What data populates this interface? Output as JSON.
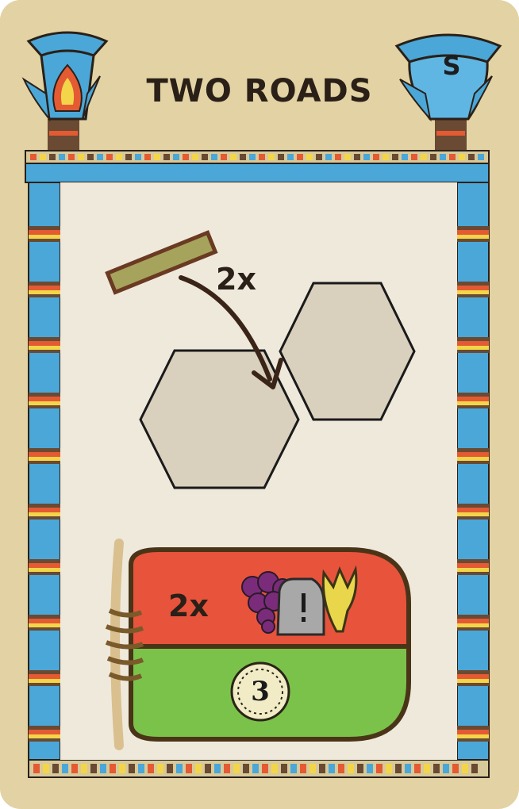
{
  "card": {
    "title": "TWO ROADS",
    "letter": "S",
    "road_multiplier": "2x",
    "reward_multiplier": "2x",
    "coin_value": "3",
    "icons": [
      "road-tile-icon",
      "arrow-icon",
      "hex-tile-icon",
      "grapes-icon",
      "event-stone-icon",
      "grain-icon",
      "coin-icon",
      "sack-icon"
    ],
    "colors": {
      "card_bg": "#e3d2a3",
      "panel": "#efe9dc",
      "pillar_blue": "#4aa7d8",
      "sack_red": "#e8533c",
      "sack_green": "#7bc24a",
      "grapes": "#7a2c7a",
      "grain": "#e9d64a"
    }
  }
}
